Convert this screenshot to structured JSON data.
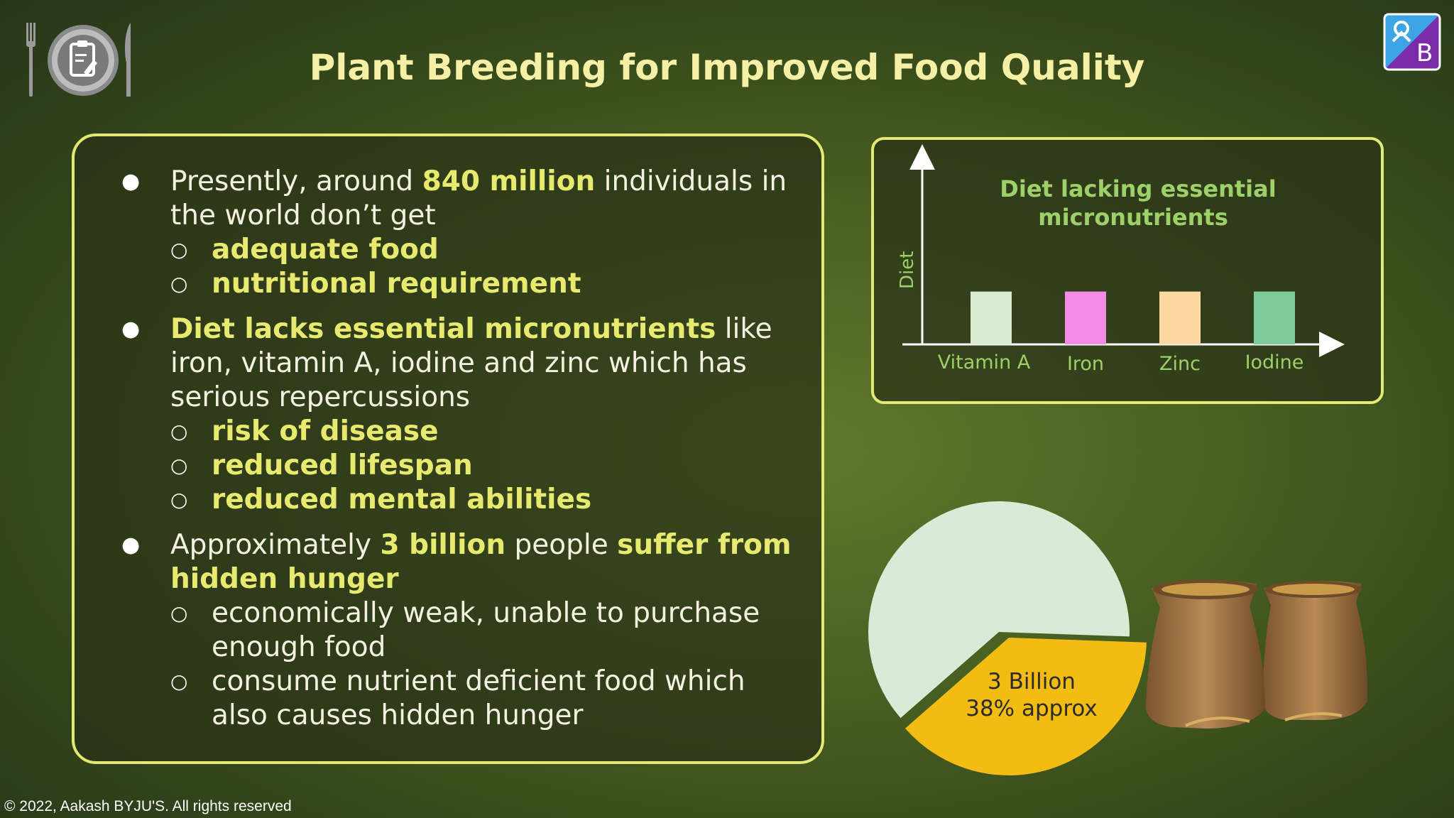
{
  "title": "Plant Breeding for Improved Food Quality",
  "icons": {
    "header_left": "cutlery-clipboard-icon",
    "header_right": "byjus-logo-icon",
    "sacks": "grain-sacks-icon"
  },
  "bullets": [
    {
      "parts": [
        "Presently, around ",
        "840 million",
        " individuals in the world don’t get"
      ],
      "subs": [
        "adequate food",
        "nutritional requirement"
      ]
    },
    {
      "parts": [
        "Diet lacks essential micronutrients",
        " like iron, vitamin A, iodine and zinc which has serious repercussions"
      ],
      "subs": [
        "risk of disease",
        "reduced lifespan",
        "reduced mental abilities"
      ]
    },
    {
      "parts": [
        "Approximately ",
        "3 billion",
        " people ",
        "suffer from hidden hunger"
      ],
      "subs": [
        "economically weak, unable to purchase enough food",
        "consume nutrient deficient food which also causes hidden hunger"
      ]
    }
  ],
  "chart_data": {
    "type": "bar",
    "title": "Diet lacking essential micronutrients",
    "title_lines": [
      "Diet lacking essential",
      "micronutrients"
    ],
    "ylabel": "Diet",
    "xlabel": "",
    "categories": [
      "Vitamin A",
      "Iron",
      "Zinc",
      "Iodine"
    ],
    "values": [
      1,
      1,
      1,
      1
    ],
    "colors": [
      "#d8ecd4",
      "#f28ce5",
      "#fcd9a0",
      "#7ecb99"
    ],
    "ylim": [
      0,
      1.9
    ],
    "grid": false,
    "legend": "none"
  },
  "pie": {
    "chart_data": {
      "type": "pie",
      "slices": [
        {
          "label": "",
          "value": 62,
          "color": "#d9ead6"
        },
        {
          "label_lines": [
            "3 Billion",
            "38% approx"
          ],
          "value": 38,
          "color": "#f3bc12"
        }
      ]
    }
  },
  "copyright": "© 2022, Aakash BYJU'S. All rights reserved"
}
